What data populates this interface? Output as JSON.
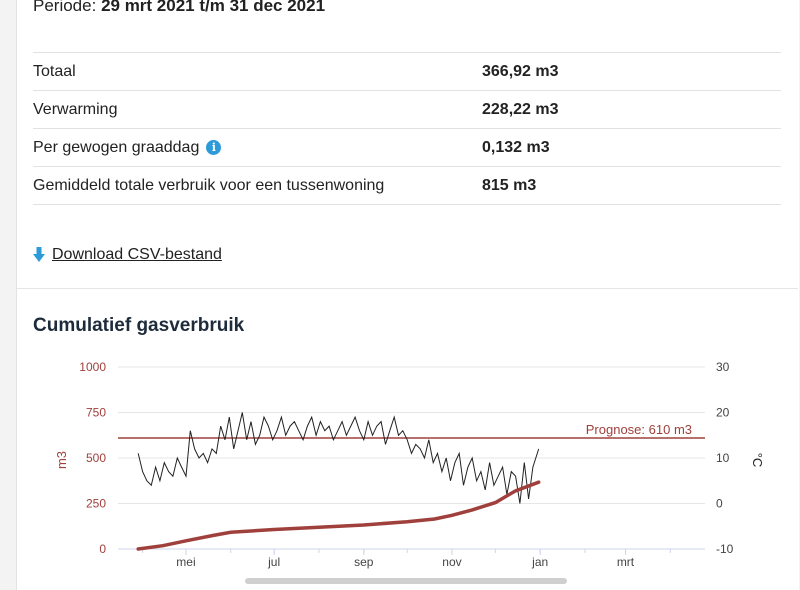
{
  "periode": {
    "label": "Periode:",
    "value": "29 mrt 2021 t/m 31 dec 2021"
  },
  "stats": [
    {
      "label": "Totaal",
      "value": "366,92 m3"
    },
    {
      "label": "Verwarming",
      "value": "228,22 m3"
    },
    {
      "label": "Per gewogen graaddag",
      "value": "0,132 m3"
    },
    {
      "label": "Gemiddeld totale verbruik voor een tussenwoning",
      "value": "815 m3"
    }
  ],
  "download": {
    "label": "Download CSV-bestand",
    "icon": "download-arrow-icon"
  },
  "chart": {
    "title": "Cumulatief gasverbruik"
  },
  "colors": {
    "gas": "#a0403c",
    "temp": "#222222",
    "prognose": "#a0403c",
    "info": "#2d9bd8"
  },
  "chart_data": {
    "type": "line",
    "title": "Cumulatief gasverbruik",
    "ylabel": "m3",
    "y2label": "°C",
    "ylim": [
      0,
      1000
    ],
    "y2lim": [
      -10,
      30
    ],
    "yticks": [
      "0",
      "250",
      "500",
      "750",
      "1000"
    ],
    "y2ticks": [
      "-10",
      "0",
      "10",
      "20",
      "30"
    ],
    "xticks": [
      "mei",
      "jul",
      "sep",
      "nov",
      "jan",
      "mrt"
    ],
    "prognose": {
      "label": "Prognose: 610 m3",
      "value": 610
    },
    "series": [
      {
        "name": "gas",
        "axis": "left",
        "x": [
          "2021-03-29",
          "2021-04-15",
          "2021-05-01",
          "2021-05-20",
          "2021-06-01",
          "2021-07-01",
          "2021-08-01",
          "2021-09-01",
          "2021-10-01",
          "2021-10-20",
          "2021-11-01",
          "2021-11-15",
          "2021-12-01",
          "2021-12-15",
          "2021-12-31"
        ],
        "values": [
          0,
          18,
          45,
          75,
          92,
          107,
          120,
          132,
          150,
          165,
          185,
          215,
          255,
          320,
          367
        ]
      },
      {
        "name": "temp",
        "axis": "right",
        "x": [
          "2021-03-29",
          "2021-04-01",
          "2021-04-04",
          "2021-04-07",
          "2021-04-10",
          "2021-04-13",
          "2021-04-16",
          "2021-04-19",
          "2021-04-22",
          "2021-04-25",
          "2021-04-28",
          "2021-05-01",
          "2021-05-04",
          "2021-05-07",
          "2021-05-10",
          "2021-05-13",
          "2021-05-16",
          "2021-05-19",
          "2021-05-22",
          "2021-05-25",
          "2021-05-28",
          "2021-05-31",
          "2021-06-03",
          "2021-06-06",
          "2021-06-09",
          "2021-06-12",
          "2021-06-15",
          "2021-06-18",
          "2021-06-21",
          "2021-06-24",
          "2021-06-27",
          "2021-06-30",
          "2021-07-03",
          "2021-07-06",
          "2021-07-09",
          "2021-07-12",
          "2021-07-15",
          "2021-07-18",
          "2021-07-21",
          "2021-07-24",
          "2021-07-27",
          "2021-07-30",
          "2021-08-02",
          "2021-08-05",
          "2021-08-08",
          "2021-08-11",
          "2021-08-14",
          "2021-08-17",
          "2021-08-20",
          "2021-08-23",
          "2021-08-26",
          "2021-08-29",
          "2021-09-01",
          "2021-09-04",
          "2021-09-07",
          "2021-09-10",
          "2021-09-13",
          "2021-09-16",
          "2021-09-19",
          "2021-09-22",
          "2021-09-25",
          "2021-09-28",
          "2021-10-01",
          "2021-10-04",
          "2021-10-07",
          "2021-10-10",
          "2021-10-13",
          "2021-10-16",
          "2021-10-19",
          "2021-10-22",
          "2021-10-25",
          "2021-10-28",
          "2021-10-31",
          "2021-11-03",
          "2021-11-06",
          "2021-11-09",
          "2021-11-12",
          "2021-11-15",
          "2021-11-18",
          "2021-11-21",
          "2021-11-24",
          "2021-11-27",
          "2021-11-30",
          "2021-12-03",
          "2021-12-06",
          "2021-12-09",
          "2021-12-12",
          "2021-12-15",
          "2021-12-18",
          "2021-12-21",
          "2021-12-24",
          "2021-12-27",
          "2021-12-31"
        ],
        "values": [
          11,
          7,
          5,
          4,
          8,
          5,
          9,
          7,
          6,
          10,
          8,
          6,
          16,
          12,
          10,
          11,
          9,
          12,
          11,
          17,
          14,
          19,
          12,
          16,
          20,
          14,
          18,
          13,
          15,
          19,
          17,
          14,
          16,
          19,
          15,
          17,
          18,
          16,
          14,
          17,
          19,
          15,
          18,
          16,
          17,
          14,
          16,
          18,
          15,
          17,
          19,
          16,
          14,
          18,
          15,
          17,
          18,
          13,
          16,
          19,
          15,
          16,
          14,
          11,
          13,
          12,
          10,
          14,
          9,
          11,
          7,
          10,
          5,
          9,
          11,
          4,
          8,
          10,
          5,
          7,
          3,
          9,
          4,
          6,
          8,
          2,
          7,
          6,
          0,
          9,
          1,
          8,
          12
        ]
      }
    ]
  }
}
